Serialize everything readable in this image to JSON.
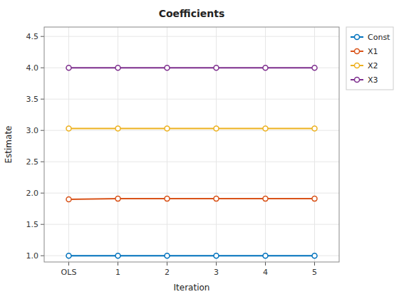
{
  "chart_data": {
    "type": "line",
    "title": "Coefficients",
    "xlabel": "Iteration",
    "ylabel": "Estimate",
    "categories": [
      "OLS",
      "1",
      "2",
      "3",
      "4",
      "5"
    ],
    "series": [
      {
        "name": "Const",
        "color": "#0072BD",
        "values": [
          1.0,
          1.0,
          1.0,
          1.0,
          1.0,
          1.0
        ]
      },
      {
        "name": "X1",
        "color": "#D95319",
        "values": [
          1.9,
          1.91,
          1.91,
          1.91,
          1.91,
          1.91
        ]
      },
      {
        "name": "X2",
        "color": "#EDB120",
        "values": [
          3.03,
          3.03,
          3.03,
          3.03,
          3.03,
          3.03
        ]
      },
      {
        "name": "X3",
        "color": "#7E2F8E",
        "values": [
          4.0,
          4.0,
          4.0,
          4.0,
          4.0,
          4.0
        ]
      }
    ],
    "ylim": [
      0.9,
      4.65
    ],
    "yticks": [
      1.0,
      1.5,
      2.0,
      2.5,
      3.0,
      3.5,
      4.0,
      4.5
    ],
    "grid": true,
    "legend": "upper right",
    "marker": "circle"
  }
}
